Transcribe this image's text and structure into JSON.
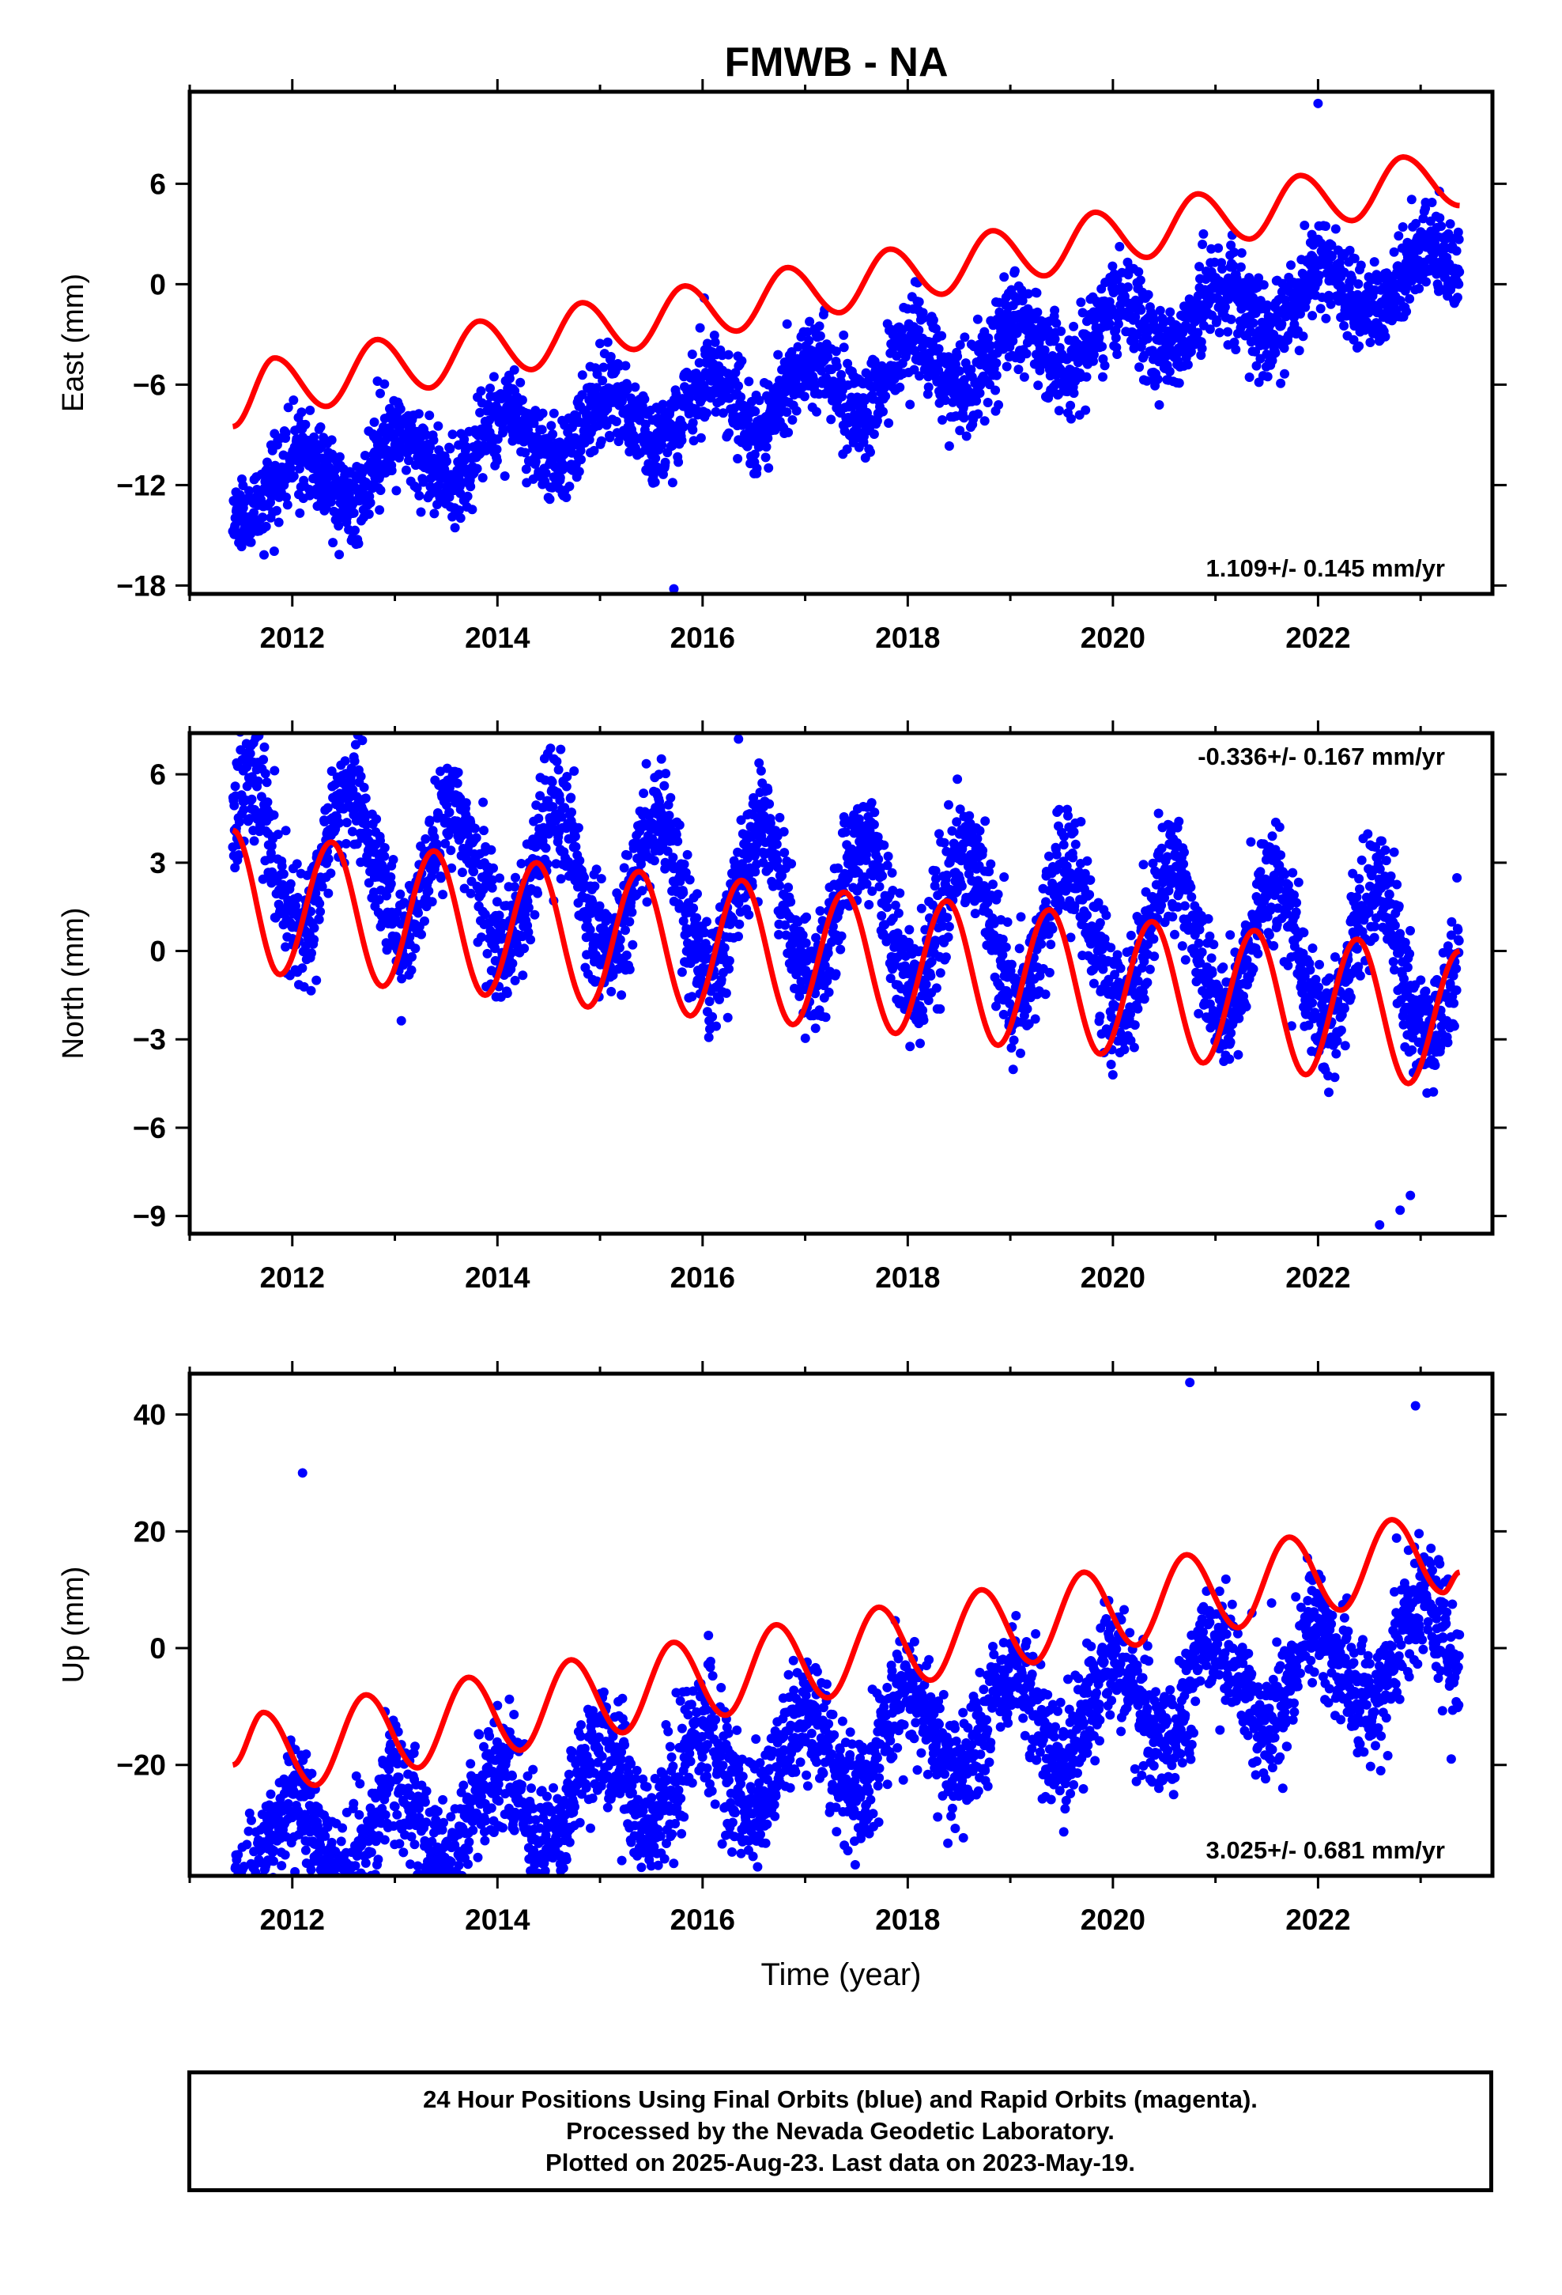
{
  "title": "FMWB - NA",
  "colors": {
    "final_orbits": "#0000ff",
    "rapid_orbits": "#ff00ff",
    "model": "#ff0000",
    "frame": "#000000"
  },
  "caption": {
    "line1": "24 Hour Positions Using Final Orbits (blue) and Rapid Orbits (magenta).",
    "line2": "Processed by the Nevada Geodetic Laboratory.",
    "line3": "Plotted on 2025-Aug-23. Last data on 2023-May-19."
  },
  "chart_data": [
    {
      "type": "scatter",
      "panel": "east",
      "ylabel": "East (mm)",
      "xlabel": "",
      "rate_label": "1.109+/- 0.145 mm/yr",
      "xlim": [
        2011.0,
        2023.7
      ],
      "ylim": [
        -18.5,
        11.5
      ],
      "xticks": [
        2012,
        2014,
        2016,
        2018,
        2020,
        2022
      ],
      "yticks": [
        6,
        0,
        -6,
        -12,
        -18
      ],
      "grid": false,
      "series": [
        {
          "role": "daily positions",
          "color": "#0000ff",
          "start": 2011.42,
          "end": 2023.38,
          "trend": 1.109,
          "offset": -5.8,
          "amplitude": 1.7,
          "phase": 1.2,
          "scatter": 1.3,
          "outliers": [
            [
              2015.72,
              -18.2
            ],
            [
              2012.42,
              -12.6
            ],
            [
              2013.35,
              -11.6
            ],
            [
              2015.55,
              -9.3
            ],
            [
              2016.35,
              -9.3
            ],
            [
              2022.0,
              10.8
            ]
          ]
        },
        {
          "role": "model fit",
          "color": "#ff0000",
          "x": [
            2011.42,
            2011.83,
            2012.33,
            2012.83,
            2013.33,
            2013.83,
            2014.33,
            2014.83,
            2015.33,
            2015.83,
            2016.33,
            2016.83,
            2017.33,
            2017.83,
            2018.33,
            2018.83,
            2019.33,
            2019.83,
            2020.33,
            2020.83,
            2021.33,
            2021.83,
            2022.33,
            2022.83,
            2023.38
          ],
          "y": [
            -8.5,
            -4.4,
            -7.3,
            -3.3,
            -6.2,
            -2.2,
            -5.1,
            -1.1,
            -3.9,
            -0.1,
            -2.8,
            1.0,
            -1.7,
            2.1,
            -0.6,
            3.2,
            0.5,
            4.3,
            1.6,
            5.4,
            2.7,
            6.5,
            3.8,
            7.6,
            4.7
          ]
        }
      ]
    },
    {
      "type": "scatter",
      "panel": "north",
      "ylabel": "North (mm)",
      "xlabel": "",
      "rate_label": "-0.336+/- 0.167 mm/yr",
      "xlim": [
        2011.0,
        2023.7
      ],
      "ylim": [
        -9.6,
        7.4
      ],
      "xticks": [
        2012,
        2014,
        2016,
        2018,
        2020,
        2022
      ],
      "yticks": [
        6,
        3,
        0,
        -3,
        -6,
        -9
      ],
      "grid": false,
      "series": [
        {
          "role": "daily positions",
          "color": "#0000ff",
          "start": 2011.42,
          "end": 2023.38,
          "trend": -0.336,
          "offset": 1.35,
          "amplitude": 2.4,
          "phase": 4.3,
          "scatter": 1.0,
          "outliers": [
            [
              2016.35,
              7.2
            ],
            [
              2022.6,
              -9.3
            ],
            [
              2022.8,
              -8.8
            ],
            [
              2022.9,
              -8.3
            ]
          ]
        },
        {
          "role": "model fit",
          "color": "#ff0000",
          "x": [
            2011.42,
            2011.88,
            2012.38,
            2012.88,
            2013.38,
            2013.88,
            2014.38,
            2014.88,
            2015.38,
            2015.88,
            2016.38,
            2016.88,
            2017.38,
            2017.88,
            2018.38,
            2018.88,
            2019.38,
            2019.88,
            2020.38,
            2020.88,
            2021.38,
            2021.88,
            2022.38,
            2022.88,
            2023.38
          ],
          "y": [
            4.1,
            -0.8,
            3.7,
            -1.2,
            3.4,
            -1.5,
            3.0,
            -1.9,
            2.7,
            -2.2,
            2.4,
            -2.5,
            2.0,
            -2.8,
            1.7,
            -3.2,
            1.4,
            -3.5,
            1.0,
            -3.8,
            0.7,
            -4.2,
            0.4,
            -4.5,
            0.0
          ]
        }
      ]
    },
    {
      "type": "scatter",
      "panel": "up",
      "ylabel": "Up (mm)",
      "xlabel": "Time (year)",
      "rate_label": "3.025+/- 0.681 mm/yr",
      "xlim": [
        2011.0,
        2023.7
      ],
      "ylim": [
        -39,
        47
      ],
      "xticks": [
        2012,
        2014,
        2016,
        2018,
        2020,
        2022
      ],
      "yticks": [
        40,
        20,
        0,
        -20
      ],
      "grid": false,
      "series": [
        {
          "role": "daily positions",
          "color": "#0000ff",
          "start": 2011.42,
          "end": 2023.38,
          "trend": 3.025,
          "offset": -17.5,
          "amplitude": 7.5,
          "phase": 1.6,
          "scatter": 5.0,
          "outliers": [
            [
              2012.1,
              30
            ],
            [
              2020.75,
              45.5
            ],
            [
              2013.15,
              -37
            ],
            [
              2022.95,
              41.5
            ]
          ]
        },
        {
          "role": "model fit",
          "color": "#ff0000",
          "x": [
            2011.42,
            2011.72,
            2012.22,
            2012.72,
            2013.22,
            2013.72,
            2014.22,
            2014.72,
            2015.22,
            2015.72,
            2016.22,
            2016.72,
            2017.22,
            2017.72,
            2018.22,
            2018.72,
            2019.22,
            2019.72,
            2020.22,
            2020.72,
            2021.22,
            2021.72,
            2022.22,
            2022.72,
            2023.22,
            2023.38
          ],
          "y": [
            -20.0,
            -11.0,
            -23.5,
            -8.0,
            -20.5,
            -5.0,
            -17.5,
            -2.0,
            -14.5,
            1.0,
            -11.5,
            4.0,
            -8.5,
            7.0,
            -5.5,
            10.0,
            -2.5,
            13.0,
            0.5,
            16.0,
            3.5,
            19.0,
            6.5,
            22.0,
            9.5,
            13.0
          ]
        }
      ]
    }
  ]
}
